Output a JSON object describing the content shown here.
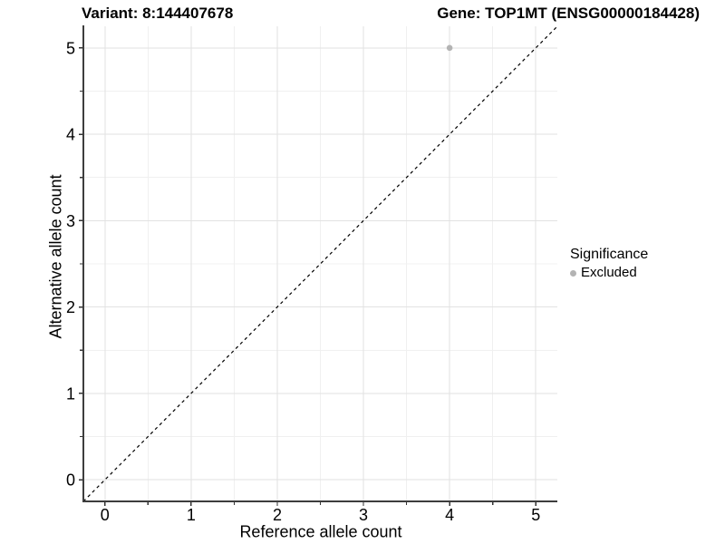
{
  "chart_data": {
    "type": "scatter",
    "title_left": "Variant: 8:144407678",
    "title_right": "Gene: TOP1MT (ENSG00000184428)",
    "xlabel": "Reference allele count",
    "ylabel": "Alternative allele count",
    "xlim": [
      -0.25,
      5.25
    ],
    "ylim": [
      -0.25,
      5.25
    ],
    "x_major_ticks": [
      0,
      1,
      2,
      3,
      4,
      5
    ],
    "x_minor_ticks": [
      0.5,
      1.5,
      2.5,
      3.5,
      4.5
    ],
    "y_major_ticks": [
      0,
      1,
      2,
      3,
      4,
      5
    ],
    "y_minor_ticks": [
      0.5,
      1.5,
      2.5,
      3.5,
      4.5
    ],
    "grid": true,
    "series": [
      {
        "name": "Excluded",
        "color": "#b3b3b3",
        "points": [
          {
            "x": 4,
            "y": 5
          }
        ]
      }
    ],
    "reference_line": {
      "type": "identity",
      "slope": 1,
      "intercept": 0,
      "style": "dashed",
      "color": "#000000"
    },
    "legend": {
      "title": "Significance",
      "position": "right",
      "entries": [
        {
          "label": "Excluded",
          "color": "#b3b3b3"
        }
      ]
    },
    "colors": {
      "background": "#ffffff",
      "grid_major": "#e2e2e2",
      "grid_minor": "#f0f0f0",
      "axis_line": "#3d3d3d",
      "tick": "#333333",
      "point": "#b3b3b3",
      "text": "#000000"
    }
  }
}
